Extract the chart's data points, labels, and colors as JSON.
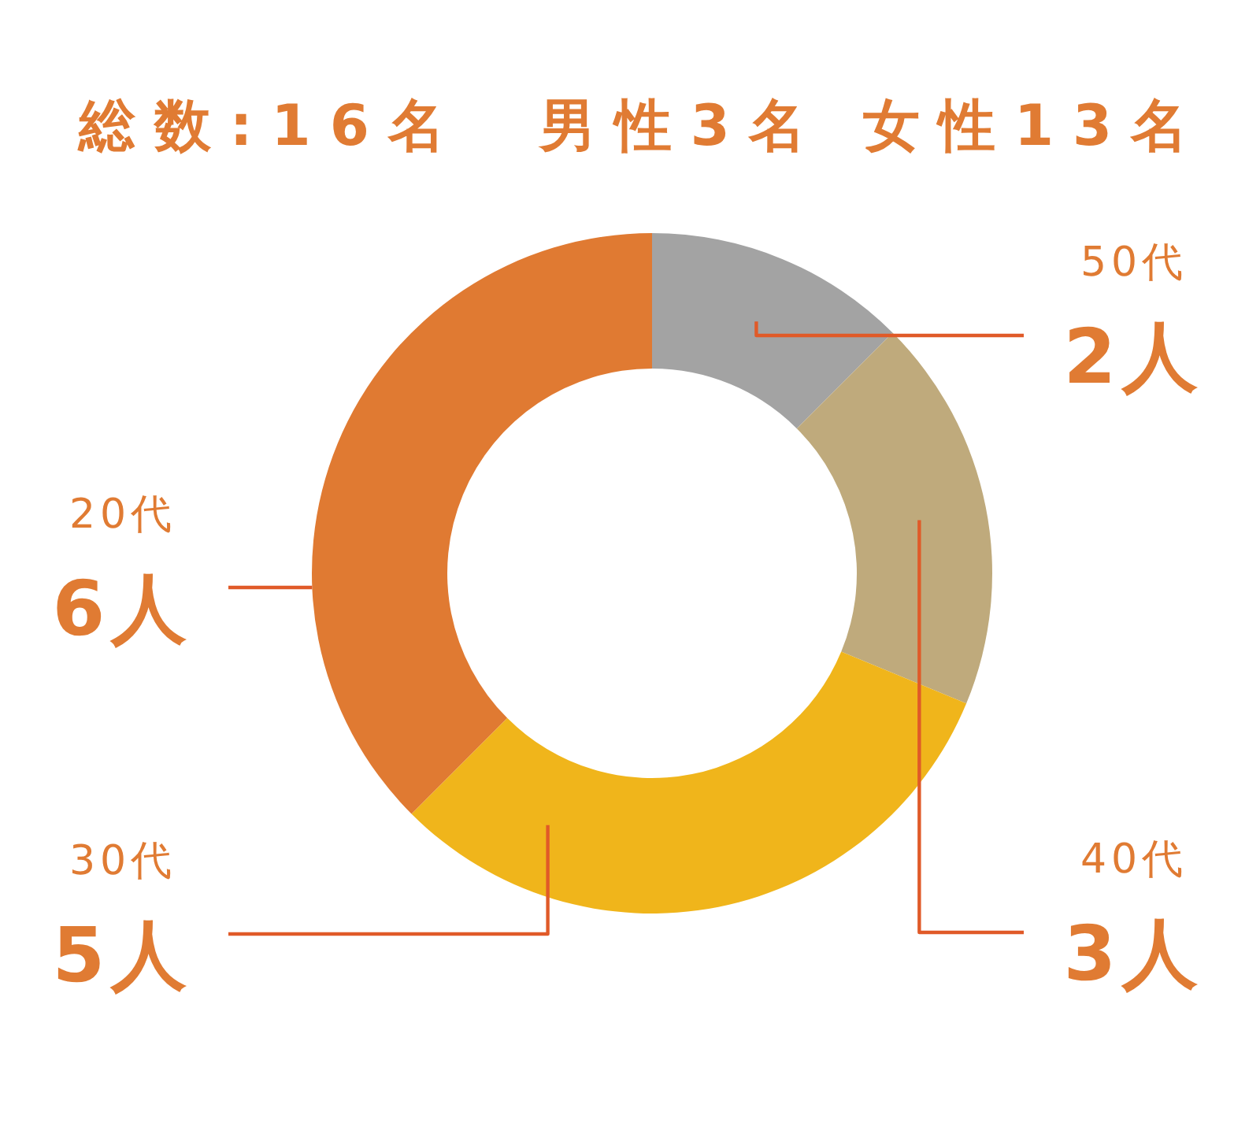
{
  "chart_data": {
    "type": "donut",
    "title": "総数:16名　男性3名 女性13名",
    "categories": [
      "50代",
      "40代",
      "30代",
      "20代"
    ],
    "values": [
      2,
      3,
      5,
      6
    ],
    "colors": [
      "#a3a3a3",
      "#bfaa7c",
      "#f0b51b",
      "#e07a32"
    ],
    "value_labels": [
      "2人",
      "3人",
      "5人",
      "6人"
    ]
  }
}
